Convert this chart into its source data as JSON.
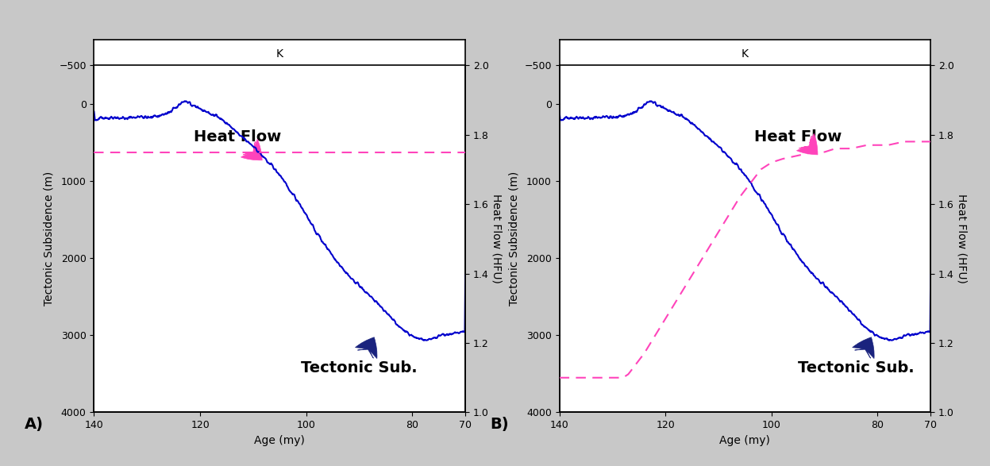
{
  "bg_color": "#c8c8c8",
  "panel_bg": "#ffffff",
  "xlim": [
    140,
    70
  ],
  "ylim_left": [
    -500,
    4000
  ],
  "ylim_right": [
    1,
    2
  ],
  "xlabel": "Age (my)",
  "ylabel_left": "Tectonic Subsidence (m)",
  "ylabel_right": "Heat Flow (HFU)",
  "title_label": "K",
  "panel_A_label": "A)",
  "panel_B_label": "B)",
  "tecto_color": "#0000cc",
  "heat_color": "#ff44bb",
  "heat_flow_A_hfu": 1.75,
  "annotation_hf": "Heat Flow",
  "annotation_ts": "Tectonic Sub.",
  "arrow_hf_color": "#ff44bb",
  "arrow_ts_color": "#1a237e",
  "left_yticks": [
    -500,
    0,
    1000,
    2000,
    3000,
    4000
  ],
  "right_yticks": [
    1,
    1.2,
    1.4,
    1.6,
    1.8,
    2
  ],
  "xticks": [
    140,
    120,
    100,
    80,
    70
  ],
  "label_fontsize": 10,
  "annot_fontsize": 14
}
